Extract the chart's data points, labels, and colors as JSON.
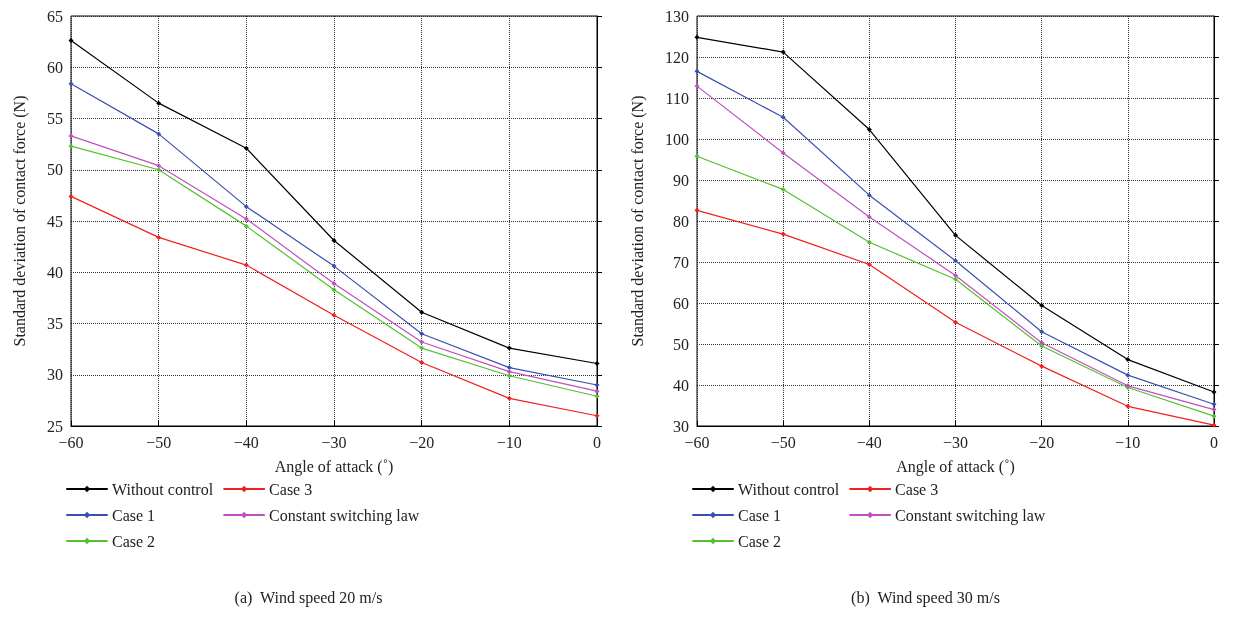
{
  "chart_data": [
    {
      "type": "line",
      "title": "(a)  Wind speed 20 m/s",
      "xlabel": "Angle of attack (˚)",
      "ylabel": "Standard deviation of contact force (N)",
      "x": [
        -60,
        -50,
        -40,
        -30,
        -20,
        -10,
        0
      ],
      "series": [
        {
          "name": "Without control",
          "color": "#000000",
          "values": [
            62.6,
            56.5,
            52.1,
            43.1,
            36.1,
            32.6,
            31.1
          ]
        },
        {
          "name": "Case 1",
          "color": "#3a50b0",
          "values": [
            58.4,
            53.5,
            46.4,
            40.6,
            34.0,
            30.7,
            29.0
          ]
        },
        {
          "name": "Case 2",
          "color": "#55c030",
          "values": [
            52.3,
            50.0,
            44.5,
            38.3,
            32.6,
            29.9,
            27.9
          ]
        },
        {
          "name": "Case 3",
          "color": "#f02020",
          "values": [
            47.4,
            43.4,
            40.7,
            35.8,
            31.2,
            27.7,
            26.0
          ]
        },
        {
          "name": "Constant switching law",
          "color": "#c050c0",
          "values": [
            53.3,
            50.4,
            45.2,
            38.9,
            33.2,
            30.3,
            28.4
          ]
        }
      ],
      "xlim": [
        -60,
        0
      ],
      "xticks": [
        -60,
        -50,
        -40,
        -30,
        -20,
        -10,
        0
      ],
      "ylim": [
        25,
        65
      ],
      "yticks": [
        25,
        30,
        35,
        40,
        45,
        50,
        55,
        60,
        65
      ],
      "grid": true,
      "legend": "bottom",
      "marker": "diamond",
      "line_style": "solid"
    },
    {
      "type": "line",
      "title": "(b)  Wind speed 30 m/s",
      "xlabel": "Angle of attack (˚)",
      "ylabel": "Standard deviation of contact force (N)",
      "x": [
        -60,
        -50,
        -40,
        -30,
        -20,
        -10,
        0
      ],
      "series": [
        {
          "name": "Without control",
          "color": "#000000",
          "values": [
            124.8,
            121.2,
            102.3,
            76.5,
            59.4,
            46.2,
            38.3
          ]
        },
        {
          "name": "Case 1",
          "color": "#3a50b0",
          "values": [
            116.5,
            105.3,
            86.3,
            70.3,
            53.0,
            42.4,
            35.3
          ]
        },
        {
          "name": "Case 2",
          "color": "#55c030",
          "values": [
            95.8,
            87.7,
            74.8,
            65.8,
            49.5,
            39.4,
            32.4
          ]
        },
        {
          "name": "Case 3",
          "color": "#f02020",
          "values": [
            82.6,
            76.8,
            69.4,
            55.3,
            44.6,
            34.8,
            30.2
          ]
        },
        {
          "name": "Constant switching law",
          "color": "#c050c0",
          "values": [
            112.9,
            96.6,
            81.0,
            66.7,
            50.3,
            39.8,
            34.0
          ]
        }
      ],
      "xlim": [
        -60,
        0
      ],
      "xticks": [
        -60,
        -50,
        -40,
        -30,
        -20,
        -10,
        0
      ],
      "ylim": [
        30,
        130
      ],
      "yticks": [
        30,
        40,
        50,
        60,
        70,
        80,
        90,
        100,
        110,
        120,
        130
      ],
      "grid": true,
      "legend": "bottom",
      "marker": "diamond",
      "line_style": "solid"
    }
  ]
}
